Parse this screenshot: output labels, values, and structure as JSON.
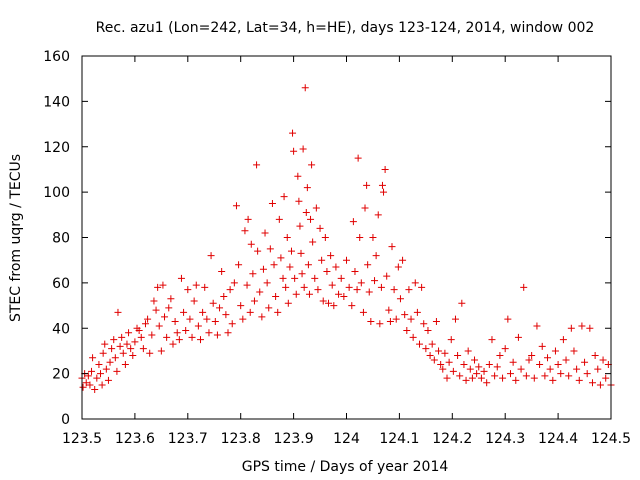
{
  "chart_data": {
    "type": "scatter",
    "title": "Rec. azu1 (Lon=242, Lat=34, h=HE), days 123-124, 2014, window 002",
    "xlabel": "GPS time / Days of year 2014",
    "ylabel": "STEC from uqrg / TECUs",
    "xlim": [
      123.5,
      124.5
    ],
    "ylim": [
      0,
      160
    ],
    "xticks": [
      "123.5",
      "123.6",
      "123.7",
      "123.8",
      "123.9",
      "124",
      "124.1",
      "124.2",
      "124.3",
      "124.4",
      "124.5"
    ],
    "yticks": [
      "0",
      "20",
      "40",
      "60",
      "80",
      "100",
      "120",
      "140",
      "160"
    ],
    "marker": "plus",
    "color": "#e00000",
    "grid": false,
    "legend": "none",
    "points": [
      [
        123.5,
        18
      ],
      [
        123.502,
        14
      ],
      [
        123.505,
        20
      ],
      [
        123.508,
        16
      ],
      [
        123.512,
        19
      ],
      [
        123.515,
        15
      ],
      [
        123.518,
        21
      ],
      [
        123.52,
        27
      ],
      [
        123.524,
        13
      ],
      [
        123.528,
        18
      ],
      [
        123.532,
        24
      ],
      [
        123.535,
        20
      ],
      [
        123.538,
        15
      ],
      [
        123.54,
        29
      ],
      [
        123.543,
        33
      ],
      [
        123.546,
        22
      ],
      [
        123.55,
        17
      ],
      [
        123.553,
        25
      ],
      [
        123.556,
        31
      ],
      [
        123.56,
        35
      ],
      [
        123.563,
        27
      ],
      [
        123.566,
        21
      ],
      [
        123.568,
        47
      ],
      [
        123.572,
        32
      ],
      [
        123.575,
        36
      ],
      [
        123.578,
        29
      ],
      [
        123.582,
        24
      ],
      [
        123.585,
        33
      ],
      [
        123.588,
        38
      ],
      [
        123.592,
        31
      ],
      [
        123.596,
        28
      ],
      [
        123.6,
        34
      ],
      [
        123.604,
        40
      ],
      [
        123.608,
        39
      ],
      [
        123.612,
        36
      ],
      [
        123.616,
        31
      ],
      [
        123.62,
        42
      ],
      [
        123.624,
        44
      ],
      [
        123.628,
        29
      ],
      [
        123.632,
        37
      ],
      [
        123.636,
        52
      ],
      [
        123.64,
        48
      ],
      [
        123.643,
        58
      ],
      [
        123.646,
        41
      ],
      [
        123.65,
        30
      ],
      [
        123.653,
        59
      ],
      [
        123.656,
        45
      ],
      [
        123.66,
        36
      ],
      [
        123.664,
        49
      ],
      [
        123.668,
        53
      ],
      [
        123.672,
        33
      ],
      [
        123.676,
        43
      ],
      [
        123.68,
        38
      ],
      [
        123.684,
        35
      ],
      [
        123.688,
        62
      ],
      [
        123.692,
        47
      ],
      [
        123.696,
        39
      ],
      [
        123.7,
        57
      ],
      [
        123.704,
        44
      ],
      [
        123.708,
        36
      ],
      [
        123.712,
        52
      ],
      [
        123.716,
        59
      ],
      [
        123.72,
        41
      ],
      [
        123.724,
        35
      ],
      [
        123.728,
        47
      ],
      [
        123.732,
        58
      ],
      [
        123.736,
        44
      ],
      [
        123.74,
        38
      ],
      [
        123.744,
        72
      ],
      [
        123.748,
        51
      ],
      [
        123.752,
        43
      ],
      [
        123.756,
        37
      ],
      [
        123.76,
        49
      ],
      [
        123.764,
        65
      ],
      [
        123.768,
        54
      ],
      [
        123.772,
        46
      ],
      [
        123.776,
        38
      ],
      [
        123.78,
        57
      ],
      [
        123.784,
        42
      ],
      [
        123.788,
        60
      ],
      [
        123.792,
        94
      ],
      [
        123.796,
        68
      ],
      [
        123.8,
        50
      ],
      [
        123.804,
        44
      ],
      [
        123.808,
        83
      ],
      [
        123.812,
        59
      ],
      [
        123.814,
        88
      ],
      [
        123.818,
        47
      ],
      [
        123.82,
        77
      ],
      [
        123.823,
        64
      ],
      [
        123.826,
        52
      ],
      [
        123.83,
        112
      ],
      [
        123.832,
        74
      ],
      [
        123.836,
        56
      ],
      [
        123.84,
        45
      ],
      [
        123.843,
        66
      ],
      [
        123.846,
        82
      ],
      [
        123.85,
        60
      ],
      [
        123.853,
        49
      ],
      [
        123.856,
        75
      ],
      [
        123.86,
        95
      ],
      [
        123.863,
        68
      ],
      [
        123.866,
        54
      ],
      [
        123.87,
        47
      ],
      [
        123.873,
        88
      ],
      [
        123.876,
        71
      ],
      [
        123.88,
        62
      ],
      [
        123.882,
        98
      ],
      [
        123.885,
        58
      ],
      [
        123.888,
        80
      ],
      [
        123.89,
        51
      ],
      [
        123.893,
        67
      ],
      [
        123.896,
        74
      ],
      [
        123.898,
        126
      ],
      [
        123.9,
        118
      ],
      [
        123.902,
        62
      ],
      [
        123.905,
        55
      ],
      [
        123.908,
        107
      ],
      [
        123.91,
        96
      ],
      [
        123.912,
        85
      ],
      [
        123.914,
        73
      ],
      [
        123.916,
        64
      ],
      [
        123.918,
        119
      ],
      [
        123.92,
        58
      ],
      [
        123.922,
        146
      ],
      [
        123.924,
        91
      ],
      [
        123.926,
        102
      ],
      [
        123.928,
        68
      ],
      [
        123.93,
        55
      ],
      [
        123.932,
        88
      ],
      [
        123.934,
        112
      ],
      [
        123.936,
        78
      ],
      [
        123.94,
        62
      ],
      [
        123.943,
        93
      ],
      [
        123.946,
        57
      ],
      [
        123.95,
        84
      ],
      [
        123.953,
        70
      ],
      [
        123.956,
        52
      ],
      [
        123.96,
        80
      ],
      [
        123.963,
        65
      ],
      [
        123.966,
        51
      ],
      [
        123.97,
        72
      ],
      [
        123.973,
        59
      ],
      [
        123.976,
        50
      ],
      [
        123.98,
        67
      ],
      [
        123.985,
        55
      ],
      [
        123.99,
        62
      ],
      [
        123.995,
        54
      ],
      [
        124.0,
        70
      ],
      [
        124.005,
        58
      ],
      [
        124.01,
        50
      ],
      [
        124.013,
        87
      ],
      [
        124.016,
        65
      ],
      [
        124.02,
        57
      ],
      [
        124.022,
        115
      ],
      [
        124.025,
        80
      ],
      [
        124.028,
        60
      ],
      [
        124.032,
        47
      ],
      [
        124.035,
        93
      ],
      [
        124.038,
        103
      ],
      [
        124.04,
        68
      ],
      [
        124.043,
        56
      ],
      [
        124.046,
        43
      ],
      [
        124.05,
        80
      ],
      [
        124.053,
        61
      ],
      [
        124.056,
        72
      ],
      [
        124.06,
        90
      ],
      [
        124.063,
        42
      ],
      [
        124.066,
        58
      ],
      [
        124.068,
        103
      ],
      [
        124.07,
        100
      ],
      [
        124.073,
        110
      ],
      [
        124.076,
        63
      ],
      [
        124.08,
        48
      ],
      [
        124.083,
        43
      ],
      [
        124.086,
        76
      ],
      [
        124.09,
        57
      ],
      [
        124.094,
        44
      ],
      [
        124.098,
        67
      ],
      [
        124.102,
        53
      ],
      [
        124.106,
        70
      ],
      [
        124.11,
        46
      ],
      [
        124.114,
        39
      ],
      [
        124.118,
        57
      ],
      [
        124.122,
        44
      ],
      [
        124.126,
        36
      ],
      [
        124.13,
        60
      ],
      [
        124.134,
        47
      ],
      [
        124.138,
        33
      ],
      [
        124.142,
        58
      ],
      [
        124.146,
        42
      ],
      [
        124.15,
        31
      ],
      [
        124.154,
        39
      ],
      [
        124.158,
        28
      ],
      [
        124.162,
        33
      ],
      [
        124.166,
        26
      ],
      [
        124.17,
        43
      ],
      [
        124.174,
        30
      ],
      [
        124.178,
        24
      ],
      [
        124.182,
        22
      ],
      [
        124.186,
        29
      ],
      [
        124.19,
        18
      ],
      [
        124.194,
        25
      ],
      [
        124.198,
        35
      ],
      [
        124.202,
        21
      ],
      [
        124.206,
        44
      ],
      [
        124.21,
        28
      ],
      [
        124.214,
        19
      ],
      [
        124.218,
        51
      ],
      [
        124.222,
        24
      ],
      [
        124.226,
        17
      ],
      [
        124.23,
        30
      ],
      [
        124.234,
        22
      ],
      [
        124.238,
        18
      ],
      [
        124.242,
        26
      ],
      [
        124.246,
        20
      ],
      [
        124.25,
        23
      ],
      [
        124.255,
        18
      ],
      [
        124.26,
        21
      ],
      [
        124.265,
        16
      ],
      [
        124.27,
        24
      ],
      [
        124.275,
        35
      ],
      [
        124.28,
        19
      ],
      [
        124.285,
        23
      ],
      [
        124.29,
        28
      ],
      [
        124.295,
        18
      ],
      [
        124.3,
        31
      ],
      [
        124.305,
        44
      ],
      [
        124.31,
        20
      ],
      [
        124.315,
        25
      ],
      [
        124.32,
        17
      ],
      [
        124.325,
        36
      ],
      [
        124.33,
        22
      ],
      [
        124.335,
        58
      ],
      [
        124.34,
        19
      ],
      [
        124.345,
        26
      ],
      [
        124.35,
        28
      ],
      [
        124.355,
        18
      ],
      [
        124.36,
        41
      ],
      [
        124.365,
        24
      ],
      [
        124.37,
        32
      ],
      [
        124.375,
        19
      ],
      [
        124.38,
        27
      ],
      [
        124.385,
        22
      ],
      [
        124.39,
        17
      ],
      [
        124.395,
        30
      ],
      [
        124.4,
        24
      ],
      [
        124.405,
        20
      ],
      [
        124.41,
        35
      ],
      [
        124.415,
        26
      ],
      [
        124.42,
        19
      ],
      [
        124.425,
        40
      ],
      [
        124.43,
        30
      ],
      [
        124.435,
        22
      ],
      [
        124.44,
        17
      ],
      [
        124.445,
        41
      ],
      [
        124.45,
        25
      ],
      [
        124.455,
        20
      ],
      [
        124.46,
        40
      ],
      [
        124.465,
        16
      ],
      [
        124.47,
        28
      ],
      [
        124.475,
        22
      ],
      [
        124.48,
        15
      ],
      [
        124.485,
        26
      ],
      [
        124.49,
        18
      ],
      [
        124.495,
        24
      ],
      [
        124.5,
        15
      ]
    ]
  }
}
